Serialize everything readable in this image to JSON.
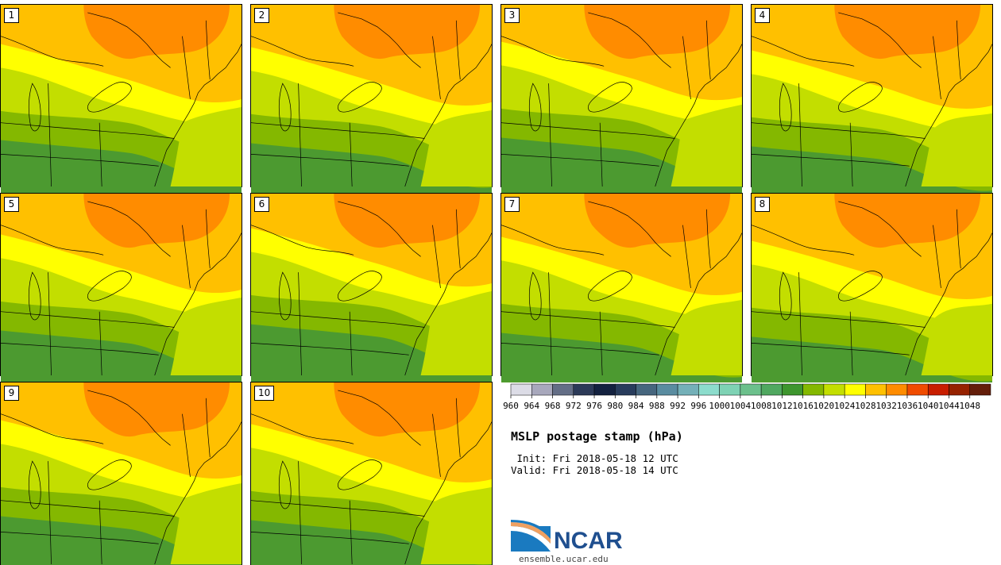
{
  "members": [
    "1",
    "2",
    "3",
    "4",
    "5",
    "6",
    "7",
    "8",
    "9",
    "10"
  ],
  "colorbar": {
    "levels": [
      "960",
      "964",
      "968",
      "972",
      "976",
      "980",
      "984",
      "988",
      "992",
      "996",
      "1000",
      "1004",
      "1008",
      "1012",
      "1016",
      "1020",
      "1024",
      "1028",
      "1032",
      "1036",
      "1040",
      "1044",
      "1048"
    ],
    "colors": [
      "#dcdce6",
      "#a8a8bc",
      "#646e86",
      "#2c3a58",
      "#142240",
      "#283c5c",
      "#46667e",
      "#5a8ca0",
      "#74b0b8",
      "#8cdccc",
      "#7ed2b4",
      "#6cc08c",
      "#50a860",
      "#3e962e",
      "#84b800",
      "#c3de00",
      "#ffff00",
      "#ffc000",
      "#ff8c00",
      "#f04c00",
      "#c81e00",
      "#962200",
      "#641e0a"
    ]
  },
  "title": "MSLP postage stamp (hPa)",
  "init_line": " Init: Fri 2018-05-18 12 UTC",
  "valid_line": "Valid: Fri 2018-05-18 14 UTC",
  "logo": {
    "text": "NCAR",
    "url": "ensemble.ucar.edu"
  }
}
